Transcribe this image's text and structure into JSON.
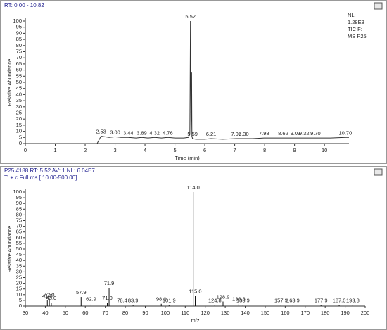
{
  "chart_data": [
    {
      "type": "line",
      "header": "RT: 0.00 - 10.82",
      "notes": [
        "NL:",
        "1.28E8",
        "TIC F:",
        "MS P25"
      ],
      "x_label": "Time (min)",
      "y_label": "Relative Abundance",
      "color": "#333333",
      "x": [
        2.4,
        2.53,
        2.8,
        3.0,
        3.2,
        3.44,
        3.7,
        3.89,
        4.1,
        4.32,
        4.55,
        4.76,
        5.0,
        5.3,
        5.45,
        5.5,
        5.52,
        5.54,
        5.56,
        5.57,
        5.59,
        5.7,
        6.0,
        6.21,
        6.6,
        7.05,
        7.3,
        7.6,
        7.98,
        8.3,
        8.62,
        9.03,
        9.32,
        9.7,
        10.2,
        10.7,
        10.82
      ],
      "values": [
        0,
        6,
        5,
        5.5,
        5,
        5,
        4.5,
        5,
        4.5,
        5,
        4.5,
        5,
        4.5,
        4.5,
        5,
        8,
        100,
        10,
        58,
        6,
        4,
        3.5,
        3.5,
        4,
        3.5,
        4,
        4,
        4,
        4.5,
        4.5,
        4.5,
        4.5,
        4.5,
        4.5,
        4.5,
        5,
        5
      ],
      "peak_labels": [
        {
          "value": 2.53,
          "label": "2.53"
        },
        {
          "value": 3.0,
          "label": "3.00"
        },
        {
          "value": 3.44,
          "label": "3.44"
        },
        {
          "value": 3.89,
          "label": "3.89"
        },
        {
          "value": 4.32,
          "label": "4.32"
        },
        {
          "value": 4.76,
          "label": "4.76"
        },
        {
          "value": 5.52,
          "label": "5.52"
        },
        {
          "value": 5.59,
          "label": "5.59"
        },
        {
          "value": 6.21,
          "label": "6.21"
        },
        {
          "value": 7.05,
          "label": "7.05"
        },
        {
          "value": 7.3,
          "label": "7.30"
        },
        {
          "value": 7.98,
          "label": "7.98"
        },
        {
          "value": 8.62,
          "label": "8.62"
        },
        {
          "value": 9.03,
          "label": "9.03"
        },
        {
          "value": 9.32,
          "label": "9.32"
        },
        {
          "value": 9.7,
          "label": "9.70"
        },
        {
          "value": 10.7,
          "label": "10.70"
        }
      ],
      "xlim": [
        0,
        10.82
      ],
      "xticks": [
        0,
        1,
        2,
        3,
        4,
        5,
        6,
        7,
        8,
        9,
        10
      ],
      "ylim": [
        0,
        100
      ],
      "yticks": [
        0,
        5,
        10,
        15,
        20,
        25,
        30,
        35,
        40,
        45,
        50,
        55,
        60,
        65,
        70,
        75,
        80,
        85,
        90,
        95,
        100
      ]
    },
    {
      "type": "stick",
      "header": [
        "P25 #188  RT: 5.52  AV: 1  NL: 6.04E7",
        "T: + c Full ms [ 10.00-500.00]"
      ],
      "x_label": "m/z",
      "y_label": "Relative Abundance",
      "color": "#111111",
      "x": [
        {
          "value": 41,
          "label": "41.0"
        },
        {
          "value": 42,
          "label": "42.0"
        },
        {
          "value": 43,
          "label": "43.0"
        },
        {
          "value": 57.9,
          "label": "57.9"
        },
        {
          "value": 62.9,
          "label": "62.9"
        },
        {
          "value": 71,
          "label": "71.0"
        },
        {
          "value": 71.9,
          "label": "71.9"
        },
        {
          "value": 78.4,
          "label": "78.4"
        },
        {
          "value": 83.9,
          "label": "83.9"
        },
        {
          "value": 98,
          "label": "98.0"
        },
        {
          "value": 101.9,
          "label": "101.9"
        },
        {
          "value": 114,
          "label": "114.0"
        },
        {
          "value": 115,
          "label": "115.0"
        },
        {
          "value": 124.8,
          "label": "124.8"
        },
        {
          "value": 128.9,
          "label": "128.9"
        },
        {
          "value": 136.8,
          "label": "136.8"
        },
        {
          "value": 138.9,
          "label": "138.9"
        },
        {
          "value": 157.9,
          "label": "157.9"
        },
        {
          "value": 163.9,
          "label": "163.9"
        },
        {
          "value": 177.9,
          "label": "177.9"
        },
        {
          "value": 187,
          "label": "187.0"
        },
        {
          "value": 193.8,
          "label": "193.8"
        }
      ],
      "values": [
        5,
        6,
        3,
        8,
        2,
        3,
        16,
        1,
        1,
        2,
        1,
        100,
        9,
        1,
        4,
        2,
        1,
        1,
        1,
        1,
        1,
        1
      ],
      "xlim": [
        30,
        200
      ],
      "xticks": [
        30,
        40,
        50,
        60,
        70,
        80,
        90,
        100,
        110,
        120,
        130,
        140,
        150,
        160,
        170,
        180,
        190,
        200
      ],
      "ylim": [
        0,
        100
      ],
      "yticks": [
        0,
        5,
        10,
        15,
        20,
        25,
        30,
        35,
        40,
        45,
        50,
        55,
        60,
        65,
        70,
        75,
        80,
        85,
        90,
        95,
        100
      ]
    }
  ]
}
